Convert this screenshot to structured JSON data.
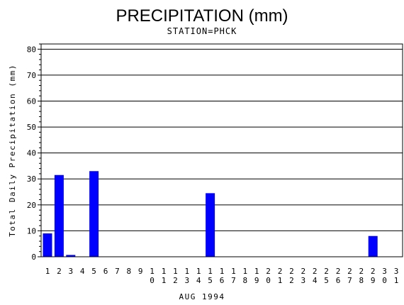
{
  "chart_data": {
    "type": "bar",
    "title": "PRECIPITATION (mm)",
    "subtitle": "STATION=PHCK",
    "xlabel": "AUG 1994",
    "ylabel": "Total Daily Precipitation (mm)",
    "ylim": [
      0,
      82
    ],
    "yticks": [
      0,
      10,
      20,
      30,
      40,
      50,
      60,
      70,
      80
    ],
    "grid": true,
    "bar_color": "#0000ff",
    "categories": [
      "1",
      "2",
      "3",
      "4",
      "5",
      "6",
      "7",
      "8",
      "9",
      "10",
      "11",
      "12",
      "13",
      "14",
      "15",
      "16",
      "17",
      "18",
      "19",
      "20",
      "21",
      "22",
      "23",
      "24",
      "25",
      "26",
      "27",
      "28",
      "29",
      "30",
      "31"
    ],
    "values": [
      9,
      31.5,
      0.7,
      0,
      33,
      0,
      0,
      0,
      0,
      0,
      0,
      0,
      0,
      0,
      24.5,
      0,
      0,
      0,
      0,
      0,
      0,
      0,
      0,
      0,
      0,
      0,
      0,
      0,
      8,
      0,
      0
    ]
  }
}
